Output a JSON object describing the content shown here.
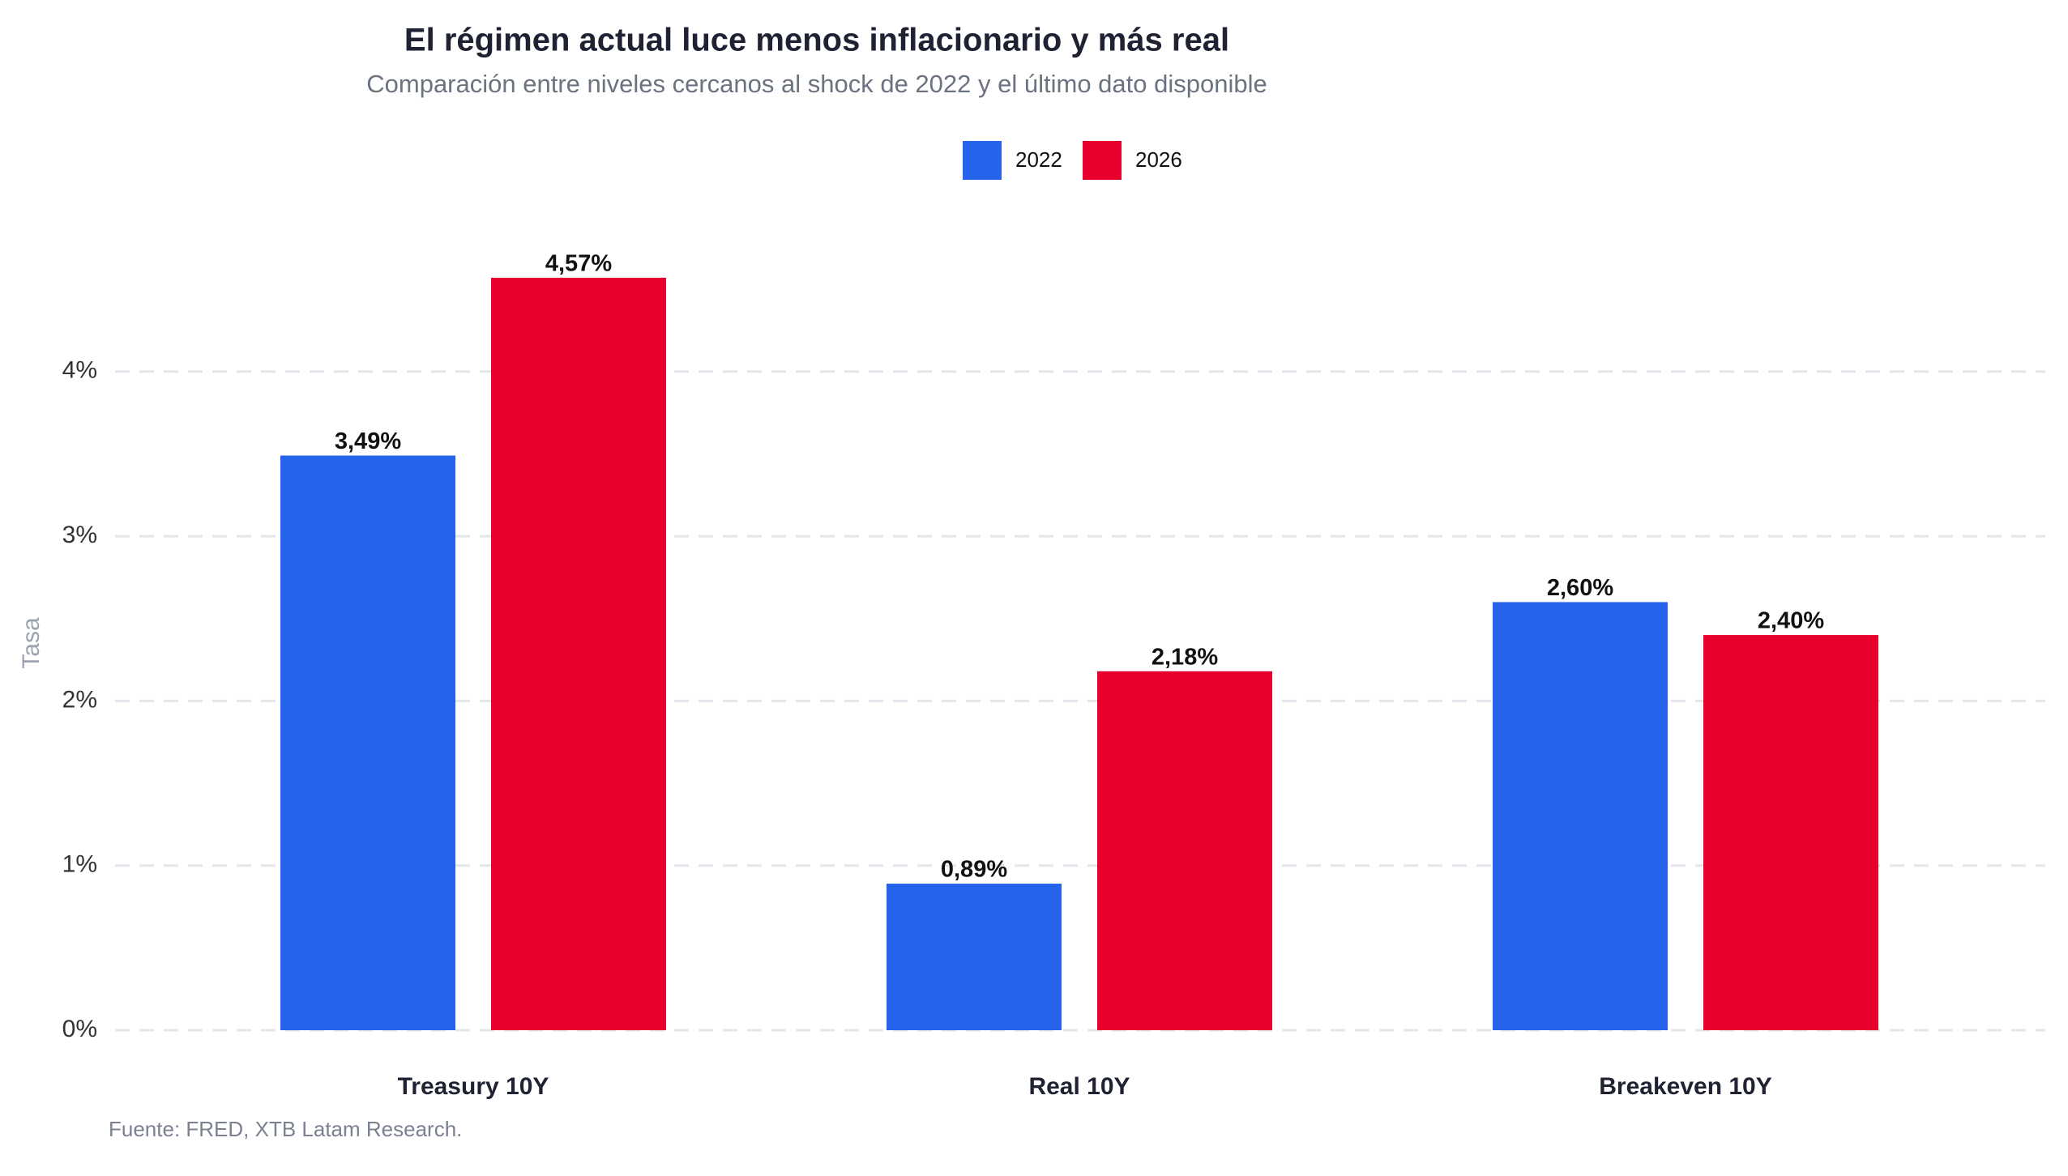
{
  "chart_data": {
    "type": "bar",
    "title": "El régimen actual luce menos inflacionario y más real",
    "subtitle": "Comparación entre niveles cercanos al shock de 2022 y el último dato disponible",
    "categories": [
      "Treasury 10Y",
      "Real 10Y",
      "Breakeven 10Y"
    ],
    "series": [
      {
        "name": "2022",
        "values": [
          3.49,
          0.89,
          2.6
        ],
        "labels": [
          "3,49%",
          "0,89%",
          "2,60%"
        ],
        "color": "#2563eb"
      },
      {
        "name": "2026",
        "values": [
          4.57,
          2.18,
          2.4
        ],
        "labels": [
          "4,57%",
          "2,18%",
          "2,40%"
        ],
        "color": "#e8002d"
      }
    ],
    "ylabel": "Tasa",
    "ylim": [
      0,
      4.75
    ],
    "yticks": [
      0,
      1,
      2,
      3,
      4
    ],
    "ytick_labels": [
      "0%",
      "1%",
      "2%",
      "3%",
      "4%"
    ],
    "grid": true,
    "legend_position": "top-center",
    "source": "Fuente: FRED, XTB Latam Research."
  }
}
